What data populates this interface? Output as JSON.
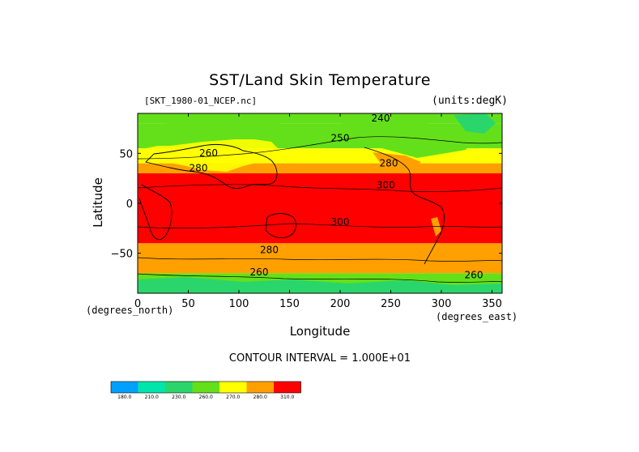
{
  "chart_data": {
    "type": "heatmap",
    "title": "SST/Land Skin Temperature",
    "dataset": "[SKT_1980-01_NCEP.nc]",
    "units": "(units:degK)",
    "xlabel": "Longitude",
    "ylabel": "Latitude",
    "x_unit": "(degrees_north)",
    "y_unit": "(degrees_east)",
    "xlim": [
      0,
      360
    ],
    "ylim": [
      -90,
      90
    ],
    "x_ticks": [
      0,
      50,
      100,
      150,
      200,
      250,
      300,
      350
    ],
    "y_ticks": [
      50,
      0,
      -50
    ],
    "y_tick_labels": [
      "50",
      "0",
      "−50"
    ],
    "contour_interval_text": "CONTOUR INTERVAL = 1.000E+01",
    "colorbar": {
      "levels": [
        180.0,
        210.0,
        230.0,
        260.0,
        270.0,
        280.0,
        310.0
      ],
      "labels": [
        "180.0",
        "210.0",
        "230.0",
        "260.0",
        "270.0",
        "280.0",
        "310.0"
      ],
      "colors": [
        "#00a0ff",
        "#00e6aa",
        "#2ad66b",
        "#64e01a",
        "#ffff00",
        "#ffa000",
        "#ff0000"
      ]
    },
    "contour_labels": [
      {
        "text": "240",
        "lon": 240,
        "lat": 82
      },
      {
        "text": "250",
        "lon": 200,
        "lat": 62
      },
      {
        "text": "260",
        "lon": 70,
        "lat": 47
      },
      {
        "text": "280",
        "lon": 60,
        "lat": 32
      },
      {
        "text": "280",
        "lon": 248,
        "lat": 37
      },
      {
        "text": "300",
        "lon": 245,
        "lat": 15
      },
      {
        "text": "300",
        "lon": 200,
        "lat": -22
      },
      {
        "text": "280",
        "lon": 130,
        "lat": -50
      },
      {
        "text": "260",
        "lon": 120,
        "lat": -72
      },
      {
        "text": "260",
        "lon": 332,
        "lat": -75
      }
    ],
    "bands": [
      {
        "lat_from": 90,
        "lat_to": 80,
        "level": 260.0
      },
      {
        "lat_from": 80,
        "lat_to": 55,
        "level": 260.0
      },
      {
        "lat_from": 55,
        "lat_to": 40,
        "level": 270.0
      },
      {
        "lat_from": 40,
        "lat_to": 30,
        "level": 280.0
      },
      {
        "lat_from": 30,
        "lat_to": -40,
        "level": 310.0
      },
      {
        "lat_from": -40,
        "lat_to": -70,
        "level": 280.0
      },
      {
        "lat_from": -70,
        "lat_to": -90,
        "level": 260.0
      }
    ]
  }
}
